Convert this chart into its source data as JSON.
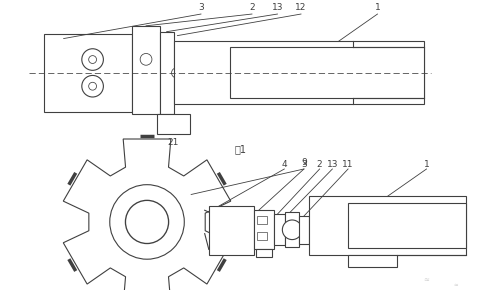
{
  "fig_label": "图1",
  "bg_color": "#ffffff",
  "line_color": "#404040",
  "lw": 0.8
}
